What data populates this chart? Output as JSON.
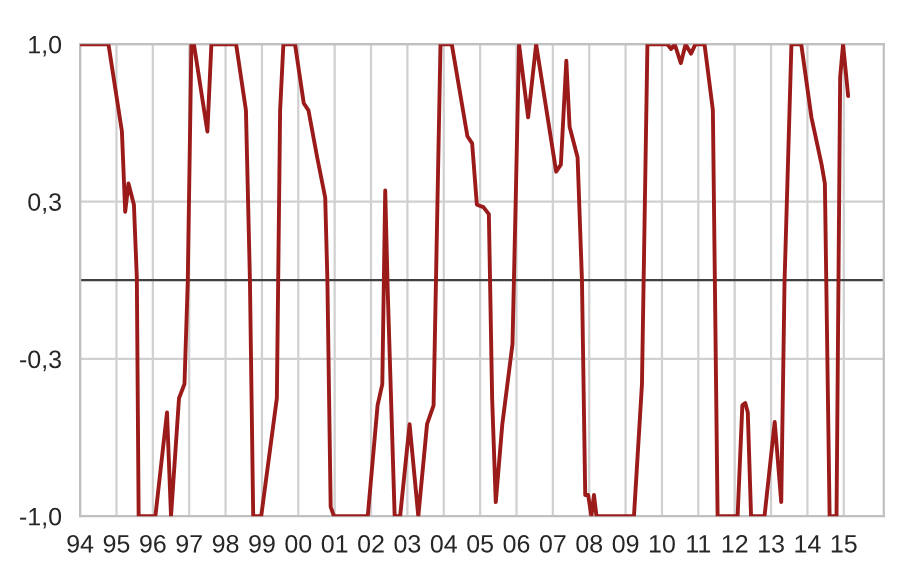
{
  "chart_data": {
    "type": "line",
    "x": [
      1994.0,
      1994.78,
      1995.15,
      1995.24,
      1995.33,
      1995.48,
      1995.56,
      1995.61,
      1996.07,
      1996.39,
      1996.5,
      1996.72,
      1996.87,
      1996.96,
      1997.06,
      1997.13,
      1997.5,
      1997.61,
      1997.83,
      1998.29,
      1998.56,
      1998.67,
      1998.76,
      1998.98,
      1999.41,
      1999.5,
      1999.59,
      1999.91,
      2000.15,
      2000.28,
      2000.52,
      2000.74,
      2000.8,
      2000.89,
      2000.98,
      2001.91,
      2002.18,
      2002.31,
      2002.39,
      2002.46,
      2002.65,
      2002.8,
      2003.06,
      2003.3,
      2003.54,
      2003.72,
      2003.91,
      2004.22,
      2004.65,
      2004.78,
      2004.91,
      2005.09,
      2005.24,
      2005.33,
      2005.43,
      2005.61,
      2005.89,
      2005.98,
      2006.07,
      2006.32,
      2006.54,
      2007.09,
      2007.22,
      2007.37,
      2007.46,
      2007.68,
      2007.8,
      2007.89,
      2007.97,
      2008.06,
      2008.13,
      2008.2,
      2009.23,
      2009.45,
      2009.6,
      2010.15,
      2010.25,
      2010.35,
      2010.52,
      2010.65,
      2010.8,
      2010.92,
      2011.17,
      2011.4,
      2011.53,
      2012.08,
      2012.21,
      2012.29,
      2012.36,
      2012.45,
      2012.82,
      2013.1,
      2013.28,
      2013.37,
      2013.56,
      2013.83,
      2014.11,
      2014.39,
      2014.48,
      2014.61,
      2014.8,
      2014.9,
      2014.98,
      2015.12
    ],
    "series": [
      {
        "color": "#9b1b1b",
        "values": [
          1.0,
          1.0,
          0.63,
          0.29,
          0.41,
          0.32,
          0.01,
          -1.0,
          -1.0,
          -0.56,
          -1.0,
          -0.5,
          -0.44,
          -0.01,
          1.0,
          1.0,
          0.63,
          1.0,
          1.0,
          1.0,
          0.72,
          0.0,
          -1.0,
          -1.0,
          -0.5,
          0.72,
          1.0,
          1.0,
          0.75,
          0.72,
          0.52,
          0.35,
          0.0,
          -0.96,
          -1.0,
          -1.0,
          -0.53,
          -0.44,
          0.38,
          -0.05,
          -1.0,
          -1.0,
          -0.61,
          -1.0,
          -0.61,
          -0.53,
          1.0,
          1.0,
          0.61,
          0.58,
          0.32,
          0.31,
          0.28,
          -0.5,
          -0.94,
          -0.61,
          -0.27,
          0.35,
          1.0,
          0.69,
          1.0,
          0.46,
          0.49,
          0.93,
          0.65,
          0.52,
          0.0,
          -0.91,
          -0.91,
          -1.0,
          -0.91,
          -1.0,
          -1.0,
          -0.44,
          1.0,
          1.0,
          0.98,
          1.0,
          0.92,
          1.0,
          0.96,
          1.0,
          1.0,
          0.72,
          -1.0,
          -1.0,
          -0.53,
          -0.52,
          -0.56,
          -1.0,
          -1.0,
          -0.6,
          -0.94,
          -0.01,
          1.0,
          1.0,
          0.69,
          0.49,
          0.41,
          -1.0,
          -1.0,
          0.86,
          1.0,
          0.78
        ]
      }
    ],
    "xlim": [
      1994,
      2016.1
    ],
    "xticks": [
      {
        "value": 1994,
        "label": "94"
      },
      {
        "value": 1995,
        "label": "95"
      },
      {
        "value": 1996,
        "label": "96"
      },
      {
        "value": 1997,
        "label": "97"
      },
      {
        "value": 1998,
        "label": "98"
      },
      {
        "value": 1999,
        "label": "99"
      },
      {
        "value": 2000,
        "label": "00"
      },
      {
        "value": 2001,
        "label": "01"
      },
      {
        "value": 2002,
        "label": "02"
      },
      {
        "value": 2003,
        "label": "03"
      },
      {
        "value": 2004,
        "label": "04"
      },
      {
        "value": 2005,
        "label": "05"
      },
      {
        "value": 2006,
        "label": "06"
      },
      {
        "value": 2007,
        "label": "07"
      },
      {
        "value": 2008,
        "label": "08"
      },
      {
        "value": 2009,
        "label": "09"
      },
      {
        "value": 2010,
        "label": "10"
      },
      {
        "value": 2011,
        "label": "11"
      },
      {
        "value": 2012,
        "label": "12"
      },
      {
        "value": 2013,
        "label": "13"
      },
      {
        "value": 2014,
        "label": "14"
      },
      {
        "value": 2015,
        "label": "15"
      }
    ],
    "ylim": [
      -1,
      1
    ],
    "yticks": [
      {
        "value": 1,
        "label": "1,0"
      },
      {
        "value": 0.3333,
        "label": "0,3"
      },
      {
        "value": -0.3333,
        "label": "-0,3"
      },
      {
        "value": -1,
        "label": "-1,0"
      }
    ],
    "ref_lines": [
      {
        "axis": "y",
        "value": 0,
        "color": "#404040"
      }
    ],
    "grid": true
  }
}
